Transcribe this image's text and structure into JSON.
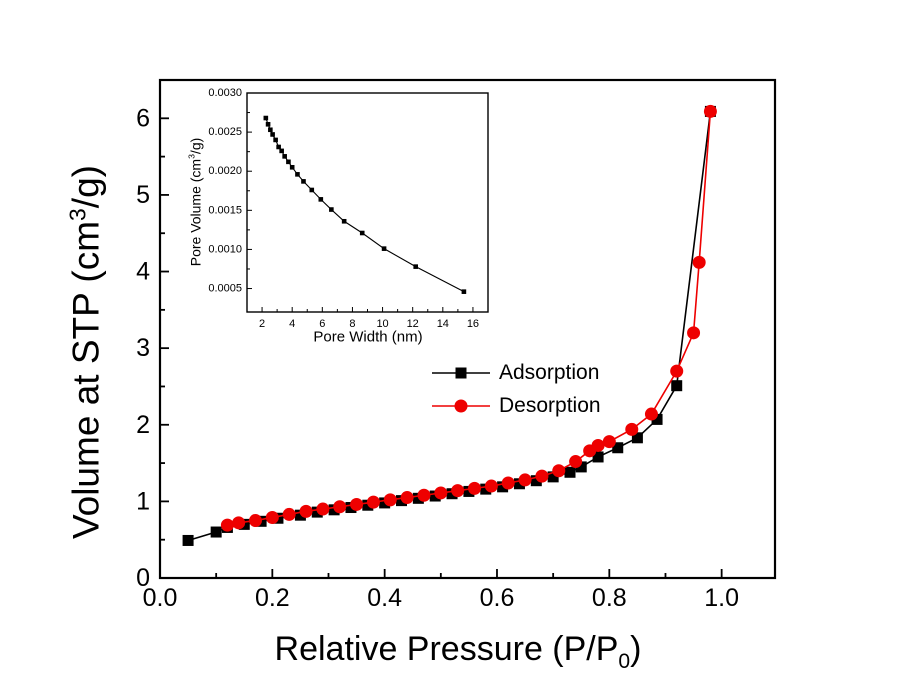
{
  "figure": {
    "background": "#ffffff",
    "colors": {
      "adsorption": "#000000",
      "desorption": "#ee0000"
    }
  },
  "main_axes": {
    "y_title": {
      "pre": "Volume at STP (cm",
      "sup": "3",
      "post": "/g)"
    },
    "x_title": {
      "pre": "Relative Pressure (P/P",
      "sub": "0",
      "post": ")"
    }
  },
  "inset_axes": {
    "y_title": {
      "pre": "Pore Volume (cm",
      "sup": "3",
      "post": "/g)"
    },
    "x_title": {
      "text": "Pore Width (nm)"
    }
  },
  "legend": {
    "items": [
      {
        "label": "Adsorption",
        "color": "#000000",
        "marker": "square"
      },
      {
        "label": "Desorption",
        "color": "#ee0000",
        "marker": "circle"
      }
    ]
  },
  "chart_data": [
    {
      "id": "main",
      "type": "line",
      "title": "",
      "xlabel": "Relative Pressure (P/P0)",
      "ylabel": "Volume at STP (cm3/g)",
      "xlim": [
        0,
        1.095
      ],
      "ylim": [
        0,
        6.5
      ],
      "grid": false,
      "legend_position": "center-right",
      "x_major_ticks": [
        0.0,
        0.2,
        0.4,
        0.6,
        0.8,
        1.0
      ],
      "x_tick_labels": [
        "0.0",
        "0.2",
        "0.4",
        "0.6",
        "0.8",
        "1.0"
      ],
      "x_minor_ticks": [
        0.1,
        0.3,
        0.5,
        0.7,
        0.9
      ],
      "y_major_ticks": [
        0,
        1,
        2,
        3,
        4,
        5,
        6
      ],
      "y_tick_labels": [
        "0",
        "1",
        "2",
        "3",
        "4",
        "5",
        "6"
      ],
      "y_minor_ticks": [
        0.5,
        1.5,
        2.5,
        3.5,
        4.5,
        5.5
      ],
      "series": [
        {
          "name": "Adsorption",
          "color": "#000000",
          "marker": "square",
          "x": [
            0.05,
            0.1,
            0.12,
            0.15,
            0.18,
            0.21,
            0.25,
            0.28,
            0.31,
            0.34,
            0.37,
            0.4,
            0.43,
            0.46,
            0.49,
            0.52,
            0.55,
            0.58,
            0.61,
            0.64,
            0.67,
            0.7,
            0.73,
            0.75,
            0.78,
            0.815,
            0.85,
            0.885,
            0.92,
            0.98
          ],
          "y": [
            0.49,
            0.6,
            0.66,
            0.7,
            0.74,
            0.78,
            0.82,
            0.86,
            0.89,
            0.92,
            0.95,
            0.98,
            1.01,
            1.04,
            1.07,
            1.1,
            1.13,
            1.16,
            1.19,
            1.23,
            1.27,
            1.32,
            1.38,
            1.45,
            1.58,
            1.7,
            1.83,
            2.07,
            2.51,
            6.09
          ]
        },
        {
          "name": "Desorption",
          "color": "#ee0000",
          "marker": "circle",
          "x": [
            0.98,
            0.96,
            0.95,
            0.92,
            0.875,
            0.84,
            0.8,
            0.78,
            0.765,
            0.74,
            0.71,
            0.68,
            0.65,
            0.62,
            0.59,
            0.56,
            0.53,
            0.5,
            0.47,
            0.44,
            0.41,
            0.38,
            0.35,
            0.32,
            0.29,
            0.26,
            0.23,
            0.2,
            0.17,
            0.14,
            0.12
          ],
          "y": [
            6.09,
            4.12,
            3.2,
            2.7,
            2.14,
            1.94,
            1.78,
            1.73,
            1.66,
            1.52,
            1.4,
            1.33,
            1.28,
            1.24,
            1.2,
            1.17,
            1.14,
            1.11,
            1.08,
            1.05,
            1.02,
            0.99,
            0.96,
            0.93,
            0.9,
            0.87,
            0.83,
            0.79,
            0.75,
            0.72,
            0.69
          ]
        }
      ]
    },
    {
      "id": "inset",
      "type": "line",
      "title": "",
      "xlabel": "Pore Width (nm)",
      "ylabel": "Pore Volume (cm3/g)",
      "xlim": [
        1,
        17
      ],
      "ylim": [
        0.0002,
        0.003
      ],
      "grid": false,
      "legend_position": "none",
      "x_major_ticks": [
        2,
        4,
        6,
        8,
        10,
        12,
        14,
        16
      ],
      "x_tick_labels": [
        "2",
        "4",
        "6",
        "8",
        "10",
        "12",
        "14",
        "16"
      ],
      "x_minor_ticks": [
        3,
        5,
        7,
        9,
        11,
        13,
        15
      ],
      "y_major_ticks": [
        0.0005,
        0.001,
        0.0015,
        0.002,
        0.0025,
        0.003
      ],
      "y_tick_labels": [
        "0.0005",
        "0.0010",
        "0.0015",
        "0.0020",
        "0.0025",
        "0.0030"
      ],
      "y_minor_ticks": [
        0.00075,
        0.00125,
        0.00175,
        0.00225,
        0.00275
      ],
      "series": [
        {
          "name": "Pore volume",
          "color": "#000000",
          "marker": "square",
          "x": [
            2.25,
            2.4,
            2.55,
            2.7,
            2.9,
            3.1,
            3.3,
            3.5,
            3.75,
            4.0,
            4.35,
            4.75,
            5.3,
            5.9,
            6.6,
            7.45,
            8.65,
            10.1,
            12.2,
            15.4
          ],
          "y": [
            0.00268,
            0.0026,
            0.00253,
            0.00247,
            0.0024,
            0.00231,
            0.00226,
            0.00219,
            0.00212,
            0.00205,
            0.00196,
            0.00187,
            0.00176,
            0.00164,
            0.00151,
            0.00136,
            0.00121,
            0.00101,
            0.00078,
            0.00046
          ]
        }
      ]
    }
  ]
}
